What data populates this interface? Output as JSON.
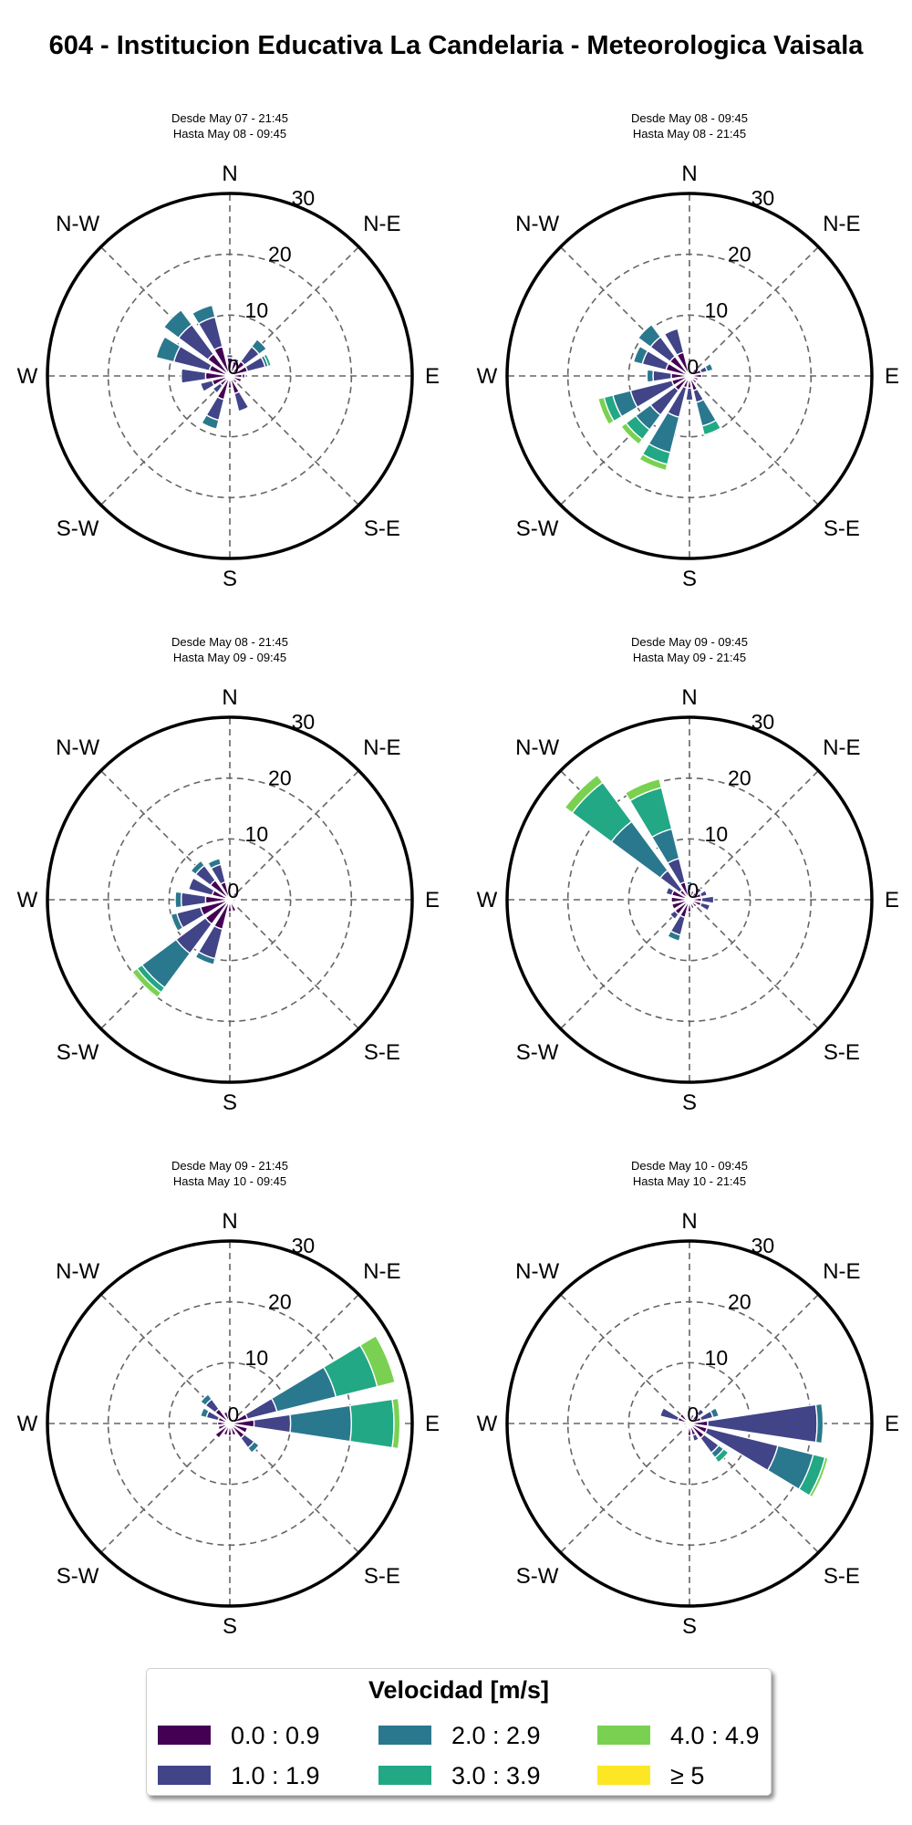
{
  "title": "604 - Institucion Educativa La Candelaria - Meteorologica Vaisala",
  "legend": {
    "title": "Velocidad [m/s]",
    "bins": [
      {
        "label": "0.0 : 0.9",
        "color": "#440154"
      },
      {
        "label": "1.0 : 1.9",
        "color": "#414487"
      },
      {
        "label": "2.0 : 2.9",
        "color": "#2a788e"
      },
      {
        "label": "3.0 : 3.9",
        "color": "#22a884"
      },
      {
        "label": "4.0 : 4.9",
        "color": "#7ad151"
      },
      {
        "label": "≥ 5",
        "color": "#fde725"
      }
    ]
  },
  "chart_data": [
    {
      "type": "windrose",
      "title": [
        "Desde May 07 - 21:45",
        "Hasta May 08 - 09:45"
      ],
      "compass": [
        "N",
        "N-E",
        "E",
        "S-E",
        "S",
        "S-W",
        "W",
        "N-W"
      ],
      "radial_ticks": [
        "0",
        "10",
        "20",
        "30"
      ],
      "rmax": 30,
      "sectors": [
        {
          "dir": 0,
          "stack": [
            3,
            0.5
          ]
        },
        {
          "dir": 22.5,
          "stack": [
            2.5,
            0.5
          ]
        },
        {
          "dir": 45,
          "stack": [
            3,
            3,
            1.5
          ]
        },
        {
          "dir": 67.5,
          "stack": [
            3,
            3,
            0.5,
            0.5
          ]
        },
        {
          "dir": 90,
          "stack": [
            2,
            0.5
          ]
        },
        {
          "dir": 112.5,
          "stack": [
            2
          ]
        },
        {
          "dir": 135,
          "stack": [
            1.5
          ]
        },
        {
          "dir": 157.5,
          "stack": [
            3,
            3
          ]
        },
        {
          "dir": 180,
          "stack": [
            2
          ]
        },
        {
          "dir": 202.5,
          "stack": [
            4,
            3.5,
            1.5
          ]
        },
        {
          "dir": 225,
          "stack": [
            2,
            1.5
          ]
        },
        {
          "dir": 247.5,
          "stack": [
            3,
            2
          ]
        },
        {
          "dir": 270,
          "stack": [
            4,
            4
          ]
        },
        {
          "dir": 292.5,
          "stack": [
            3.5,
            6,
            3
          ]
        },
        {
          "dir": 315,
          "stack": [
            4.5,
            6,
            3
          ]
        },
        {
          "dir": 337.5,
          "stack": [
            5,
            5,
            2
          ]
        }
      ]
    },
    {
      "type": "windrose",
      "title": [
        "Desde May 08 - 09:45",
        "Hasta May 08 - 21:45"
      ],
      "compass": [
        "N",
        "N-E",
        "E",
        "S-E",
        "S",
        "S-W",
        "W",
        "N-W"
      ],
      "radial_ticks": [
        "0",
        "10",
        "20",
        "30"
      ],
      "rmax": 30,
      "sectors": [
        {
          "dir": 0,
          "stack": [
            1
          ]
        },
        {
          "dir": 22.5,
          "stack": [
            1
          ]
        },
        {
          "dir": 45,
          "stack": [
            1.5
          ]
        },
        {
          "dir": 67.5,
          "stack": [
            2,
            1,
            1
          ]
        },
        {
          "dir": 90,
          "stack": [
            2
          ]
        },
        {
          "dir": 112.5,
          "stack": [
            1.5
          ]
        },
        {
          "dir": 135,
          "stack": [
            1.5
          ]
        },
        {
          "dir": 157.5,
          "stack": [
            2.5,
            2,
            4,
            1.5
          ]
        },
        {
          "dir": 180,
          "stack": [
            2,
            2
          ]
        },
        {
          "dir": 202.5,
          "stack": [
            2,
            5,
            6,
            2,
            1
          ]
        },
        {
          "dir": 225,
          "stack": [
            3,
            5,
            3,
            2,
            1
          ]
        },
        {
          "dir": 247.5,
          "stack": [
            3,
            7,
            3,
            1.5,
            1
          ]
        },
        {
          "dir": 270,
          "stack": [
            3,
            3,
            1
          ]
        },
        {
          "dir": 292.5,
          "stack": [
            4,
            4,
            1.5
          ]
        },
        {
          "dir": 315,
          "stack": [
            4,
            4,
            2.5
          ]
        },
        {
          "dir": 337.5,
          "stack": [
            4,
            4
          ]
        }
      ]
    },
    {
      "type": "windrose",
      "title": [
        "Desde May 08 - 21:45",
        "Hasta May 09 - 09:45"
      ],
      "compass": [
        "N",
        "N-E",
        "E",
        "S-E",
        "S",
        "S-W",
        "W",
        "N-W"
      ],
      "radial_ticks": [
        "0",
        "10",
        "20",
        "30"
      ],
      "rmax": 30,
      "sectors": [
        {
          "dir": 0,
          "stack": [
            1
          ]
        },
        {
          "dir": 22.5,
          "stack": [
            1
          ]
        },
        {
          "dir": 45,
          "stack": [
            1.5
          ]
        },
        {
          "dir": 90,
          "stack": [
            1
          ]
        },
        {
          "dir": 135,
          "stack": [
            1
          ]
        },
        {
          "dir": 157.5,
          "stack": [
            2
          ]
        },
        {
          "dir": 180,
          "stack": [
            2
          ]
        },
        {
          "dir": 202.5,
          "stack": [
            5,
            5,
            1
          ]
        },
        {
          "dir": 225,
          "stack": [
            5,
            6,
            7,
            1,
            1
          ]
        },
        {
          "dir": 247.5,
          "stack": [
            5,
            4,
            1
          ]
        },
        {
          "dir": 270,
          "stack": [
            4,
            4,
            1
          ]
        },
        {
          "dir": 292.5,
          "stack": [
            3,
            4
          ]
        },
        {
          "dir": 315,
          "stack": [
            4,
            3,
            1
          ]
        },
        {
          "dir": 337.5,
          "stack": [
            3,
            3,
            1
          ]
        }
      ]
    },
    {
      "type": "windrose",
      "title": [
        "Desde May 09 - 09:45",
        "Hasta May 09 - 21:45"
      ],
      "compass": [
        "N",
        "N-E",
        "E",
        "S-E",
        "S",
        "S-W",
        "W",
        "N-W"
      ],
      "radial_ticks": [
        "0",
        "10",
        "20",
        "30"
      ],
      "rmax": 30,
      "sectors": [
        {
          "dir": 0,
          "stack": [
            1.5,
            1,
            0.5
          ]
        },
        {
          "dir": 22.5,
          "stack": [
            1.5
          ]
        },
        {
          "dir": 45,
          "stack": [
            1.5,
            1
          ]
        },
        {
          "dir": 67.5,
          "stack": [
            2,
            1
          ]
        },
        {
          "dir": 90,
          "stack": [
            2,
            2
          ]
        },
        {
          "dir": 112.5,
          "stack": [
            2,
            1.5
          ]
        },
        {
          "dir": 135,
          "stack": [
            1.5
          ]
        },
        {
          "dir": 157.5,
          "stack": [
            1.5
          ]
        },
        {
          "dir": 180,
          "stack": [
            2
          ]
        },
        {
          "dir": 202.5,
          "stack": [
            3,
            3,
            1
          ]
        },
        {
          "dir": 225,
          "stack": [
            3,
            1
          ]
        },
        {
          "dir": 247.5,
          "stack": [
            3
          ]
        },
        {
          "dir": 270,
          "stack": [
            3
          ]
        },
        {
          "dir": 292.5,
          "stack": [
            3,
            1
          ]
        },
        {
          "dir": 315,
          "stack": [
            2,
            4,
            10,
            8,
            1.5
          ]
        },
        {
          "dir": 337.5,
          "stack": [
            3,
            4,
            5,
            7,
            1.5
          ]
        }
      ]
    },
    {
      "type": "windrose",
      "title": [
        "Desde May 09 - 21:45",
        "Hasta May 10 - 09:45"
      ],
      "compass": [
        "N",
        "N-E",
        "E",
        "S-E",
        "S",
        "S-W",
        "W",
        "N-W"
      ],
      "radial_ticks": [
        "0",
        "10",
        "20",
        "30"
      ],
      "rmax": 30,
      "sectors": [
        {
          "dir": 0,
          "stack": [
            1
          ]
        },
        {
          "dir": 22.5,
          "stack": [
            1
          ]
        },
        {
          "dir": 45,
          "stack": [
            1
          ]
        },
        {
          "dir": 67.5,
          "stack": [
            3,
            5,
            10,
            7,
            3
          ]
        },
        {
          "dir": 90,
          "stack": [
            4,
            6,
            10,
            7,
            1
          ]
        },
        {
          "dir": 112.5,
          "stack": [
            3
          ]
        },
        {
          "dir": 135,
          "stack": [
            3,
            2,
            1
          ]
        },
        {
          "dir": 157.5,
          "stack": [
            2
          ]
        },
        {
          "dir": 180,
          "stack": [
            2
          ]
        },
        {
          "dir": 202.5,
          "stack": [
            2
          ]
        },
        {
          "dir": 225,
          "stack": [
            3
          ]
        },
        {
          "dir": 247.5,
          "stack": [
            2
          ]
        },
        {
          "dir": 270,
          "stack": [
            2
          ]
        },
        {
          "dir": 292.5,
          "stack": [
            2,
            2,
            1
          ]
        },
        {
          "dir": 315,
          "stack": [
            3,
            2,
            1
          ]
        },
        {
          "dir": 337.5,
          "stack": [
            2
          ]
        }
      ]
    },
    {
      "type": "windrose",
      "title": [
        "Desde May 10 - 09:45",
        "Hasta May 10 - 21:45"
      ],
      "compass": [
        "N",
        "N-E",
        "E",
        "S-E",
        "S",
        "S-W",
        "W",
        "N-W"
      ],
      "radial_ticks": [
        "0",
        "10",
        "20",
        "30"
      ],
      "rmax": 30,
      "sectors": [
        {
          "dir": 0,
          "stack": [
            1
          ]
        },
        {
          "dir": 22.5,
          "stack": [
            1.5
          ]
        },
        {
          "dir": 45,
          "stack": [
            2,
            1
          ]
        },
        {
          "dir": 67.5,
          "stack": [
            2,
            2,
            1
          ]
        },
        {
          "dir": 90,
          "stack": [
            3,
            18,
            1
          ]
        },
        {
          "dir": 112.5,
          "stack": [
            3,
            12,
            6,
            2,
            0.5
          ]
        },
        {
          "dir": 135,
          "stack": [
            3,
            3,
            1,
            1
          ]
        },
        {
          "dir": 157.5,
          "stack": [
            2,
            1
          ]
        },
        {
          "dir": 180,
          "stack": [
            2
          ]
        },
        {
          "dir": 225,
          "stack": [
            1
          ]
        },
        {
          "dir": 270,
          "stack": [
            1
          ]
        },
        {
          "dir": 292.5,
          "stack": [
            2,
            3
          ]
        },
        {
          "dir": 315,
          "stack": [
            2
          ]
        },
        {
          "dir": 337.5,
          "stack": [
            1
          ]
        }
      ]
    }
  ]
}
